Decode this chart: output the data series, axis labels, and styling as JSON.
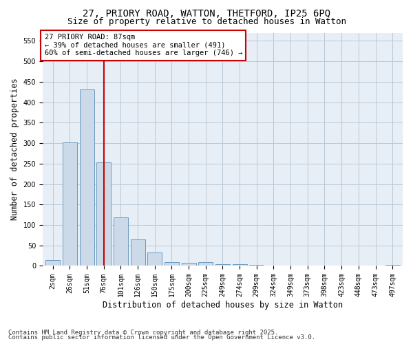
{
  "title_line1": "27, PRIORY ROAD, WATTON, THETFORD, IP25 6PQ",
  "title_line2": "Size of property relative to detached houses in Watton",
  "xlabel": "Distribution of detached houses by size in Watton",
  "ylabel": "Number of detached properties",
  "bar_color": "#ccd9e8",
  "bar_edge_color": "#6a9abf",
  "bar_edge_width": 0.7,
  "grid_color": "#b8c8d8",
  "bg_color": "#e8eef5",
  "categories": [
    "2sqm",
    "26sqm",
    "51sqm",
    "76sqm",
    "101sqm",
    "126sqm",
    "150sqm",
    "175sqm",
    "200sqm",
    "225sqm",
    "249sqm",
    "274sqm",
    "299sqm",
    "324sqm",
    "349sqm",
    "373sqm",
    "398sqm",
    "423sqm",
    "448sqm",
    "473sqm",
    "497sqm"
  ],
  "values": [
    15,
    302,
    432,
    253,
    118,
    65,
    33,
    10,
    7,
    10,
    4,
    4,
    2,
    1,
    0,
    0,
    0,
    0,
    0,
    0,
    2
  ],
  "annotation_line1": "27 PRIORY ROAD: 87sqm",
  "annotation_line2": "← 39% of detached houses are smaller (491)",
  "annotation_line3": "60% of semi-detached houses are larger (746) →",
  "vline_x": 3.0,
  "vline_color": "#cc0000",
  "annotation_box_edge": "#cc0000",
  "footer_line1": "Contains HM Land Registry data © Crown copyright and database right 2025.",
  "footer_line2": "Contains public sector information licensed under the Open Government Licence v3.0.",
  "ylim": [
    0,
    570
  ],
  "yticks": [
    0,
    50,
    100,
    150,
    200,
    250,
    300,
    350,
    400,
    450,
    500,
    550
  ],
  "title_fontsize": 10,
  "subtitle_fontsize": 9,
  "tick_fontsize": 7,
  "label_fontsize": 8.5,
  "annot_fontsize": 7.5,
  "footer_fontsize": 6.5
}
